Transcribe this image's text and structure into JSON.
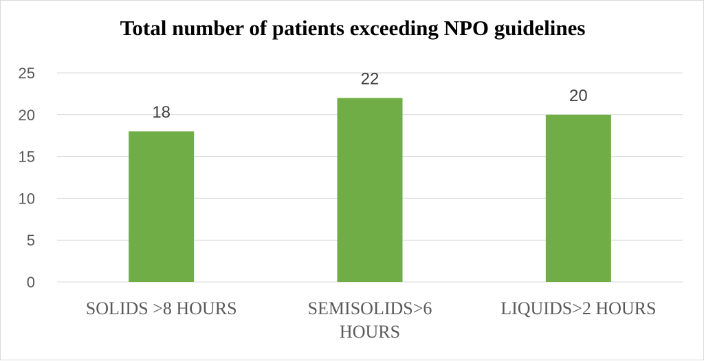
{
  "chart_data": {
    "type": "bar",
    "title": "Total number of patients exceeding NPO guidelines",
    "categories": [
      "SOLIDS >8 HOURS",
      "SEMISOLIDS>6 HOURS",
      "LIQUIDS>2 HOURS"
    ],
    "series": [
      {
        "values": [
          18,
          22,
          20
        ]
      }
    ],
    "data_labels": [
      "18",
      "22",
      "20"
    ],
    "ylim": [
      0,
      25
    ],
    "yticks": [
      0,
      5,
      10,
      15,
      20,
      25
    ],
    "grid": true,
    "legend": "none",
    "colors": {
      "bar": "#70ad47",
      "grid": "#d9d9d9",
      "axis": "#d9d9d9"
    }
  }
}
